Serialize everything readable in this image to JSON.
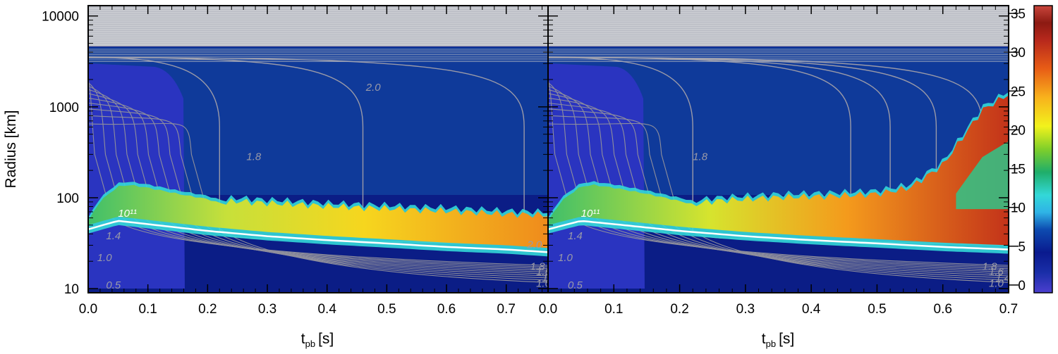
{
  "chart_data": {
    "type": "heatmap",
    "panels": [
      {
        "name": "left",
        "xlim": [
          0.0,
          0.77
        ],
        "x_ticks": [
          "0.0",
          "0.1",
          "0.2",
          "0.3",
          "0.4",
          "0.5",
          "0.6",
          "0.7"
        ],
        "shock_radius": [
          [
            0.0,
            60
          ],
          [
            0.02,
            100
          ],
          [
            0.05,
            145
          ],
          [
            0.07,
            150
          ],
          [
            0.1,
            140
          ],
          [
            0.15,
            120
          ],
          [
            0.2,
            105
          ],
          [
            0.22,
            95
          ],
          [
            0.25,
            100
          ],
          [
            0.3,
            95
          ],
          [
            0.35,
            92
          ],
          [
            0.4,
            88
          ],
          [
            0.45,
            85
          ],
          [
            0.5,
            83
          ],
          [
            0.55,
            80
          ],
          [
            0.6,
            78
          ],
          [
            0.65,
            75
          ],
          [
            0.7,
            72
          ],
          [
            0.77,
            70
          ]
        ],
        "gain_bottom_radius": [
          [
            0.0,
            50
          ],
          [
            0.05,
            62
          ],
          [
            0.1,
            57
          ],
          [
            0.2,
            48
          ],
          [
            0.3,
            42
          ],
          [
            0.4,
            38
          ],
          [
            0.5,
            35
          ],
          [
            0.6,
            32
          ],
          [
            0.7,
            30
          ],
          [
            0.77,
            28
          ]
        ],
        "contour_labels": [
          "1.8",
          "2.0",
          "2.0",
          "1.0",
          "1.4",
          "0.5",
          "1.8",
          "1.6",
          "1.4",
          "1.0",
          "10¹¹"
        ]
      },
      {
        "name": "right",
        "xlim": [
          0.0,
          0.7
        ],
        "x_ticks": [
          "0.0",
          "0.1",
          "0.2",
          "0.3",
          "0.4",
          "0.5",
          "0.6",
          "0.7"
        ],
        "shock_radius": [
          [
            0.0,
            60
          ],
          [
            0.02,
            100
          ],
          [
            0.05,
            145
          ],
          [
            0.07,
            150
          ],
          [
            0.1,
            140
          ],
          [
            0.15,
            120
          ],
          [
            0.2,
            100
          ],
          [
            0.22,
            92
          ],
          [
            0.25,
            100
          ],
          [
            0.3,
            105
          ],
          [
            0.35,
            110
          ],
          [
            0.4,
            112
          ],
          [
            0.45,
            115
          ],
          [
            0.5,
            120
          ],
          [
            0.55,
            140
          ],
          [
            0.6,
            250
          ],
          [
            0.63,
            500
          ],
          [
            0.66,
            1000
          ],
          [
            0.7,
            1500
          ]
        ],
        "gain_bottom_radius": [
          [
            0.0,
            50
          ],
          [
            0.05,
            62
          ],
          [
            0.1,
            57
          ],
          [
            0.2,
            48
          ],
          [
            0.3,
            42
          ],
          [
            0.4,
            38
          ],
          [
            0.5,
            35
          ],
          [
            0.6,
            32
          ],
          [
            0.7,
            30
          ]
        ],
        "contour_labels": [
          "1.8",
          "1.0",
          "1.4",
          "0.5",
          "1.8",
          "1.6",
          "1.4",
          "1.0",
          "10¹¹"
        ]
      }
    ],
    "xlabel": "t",
    "xlabel_subscript": "pb",
    "xlabel_unit": "[s]",
    "ylabel": "Radius [km]",
    "ylim": [
      9,
      13000
    ],
    "yscale": "log",
    "y_ticks": [
      "10",
      "100",
      "1000",
      "10000"
    ],
    "colorbar": {
      "range": [
        -1,
        36
      ],
      "ticks": [
        "0",
        "5",
        "10",
        "15",
        "20",
        "25",
        "30",
        "35"
      ],
      "colors": [
        "#4b3fcf",
        "#1a2ea8",
        "#0a1a8e",
        "#0d4bb0",
        "#2fb3e6",
        "#33d8d8",
        "#1fae6a",
        "#7fcf2a",
        "#f2f21c",
        "#f8b21c",
        "#e85d16",
        "#b7281c",
        "#8c1a12",
        "#c9463c"
      ]
    }
  }
}
